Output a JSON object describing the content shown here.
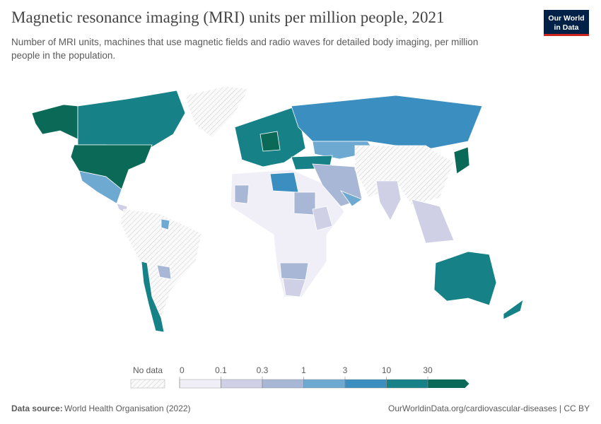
{
  "header": {
    "title": "Magnetic resonance imaging (MRI) units per million people, 2021",
    "subtitle": [
      "Number of MRI units, machines that use magnetic fields and radio waves for detailed body imaging, per million",
      "people in the population."
    ],
    "logo": [
      "Our World",
      "in Data"
    ]
  },
  "legend": {
    "no_data_label": "No data",
    "ticks": [
      0,
      0.1,
      0.3,
      1,
      3,
      10,
      30
    ],
    "colors": [
      "#f0eef6",
      "#cfd0e6",
      "#a9b7d6",
      "#6ea9d1",
      "#3b8fc0",
      "#168287",
      "#0b6a57"
    ]
  },
  "footer": {
    "source_label": "Data source:",
    "source": "World Health Organisation (2022)",
    "url": "OurWorldinData.org/cardiovascular-diseases | CC BY"
  }
}
